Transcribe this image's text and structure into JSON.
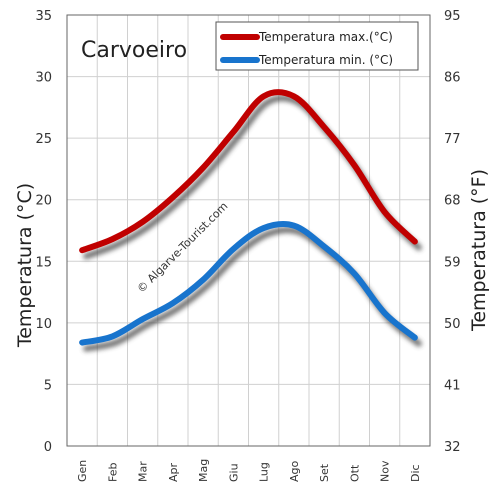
{
  "chart_data": {
    "type": "line",
    "title": "Carvoeiro",
    "watermark": "© Algarve-Tourist.com",
    "ylabel_left": "Temperatura (°C)",
    "ylabel_right": "Temperatura (°F)",
    "ylim": [
      0,
      35
    ],
    "yticks_left": [
      0,
      5,
      10,
      15,
      20,
      25,
      30,
      35
    ],
    "yticks_right": [
      32,
      41,
      50,
      59,
      68,
      77,
      86,
      95
    ],
    "categories": [
      "Gen",
      "Feb",
      "Mar",
      "Apr",
      "Mag",
      "Giu",
      "Lug",
      "Ago",
      "Set",
      "Ott",
      "Nov",
      "Dic"
    ],
    "grid": true,
    "legend_position": "top-right",
    "series": [
      {
        "name": "Temperatura max.(°C)",
        "color": "#c00000",
        "values": [
          15.9,
          16.8,
          18.2,
          20.2,
          22.6,
          25.5,
          28.4,
          28.4,
          25.9,
          22.8,
          19.0,
          16.6
        ]
      },
      {
        "name": "Temperatura min. (°C)",
        "color": "#1874cd",
        "values": [
          8.4,
          8.9,
          10.3,
          11.6,
          13.5,
          16.0,
          17.7,
          17.9,
          16.2,
          14.0,
          10.8,
          8.8
        ]
      }
    ]
  }
}
